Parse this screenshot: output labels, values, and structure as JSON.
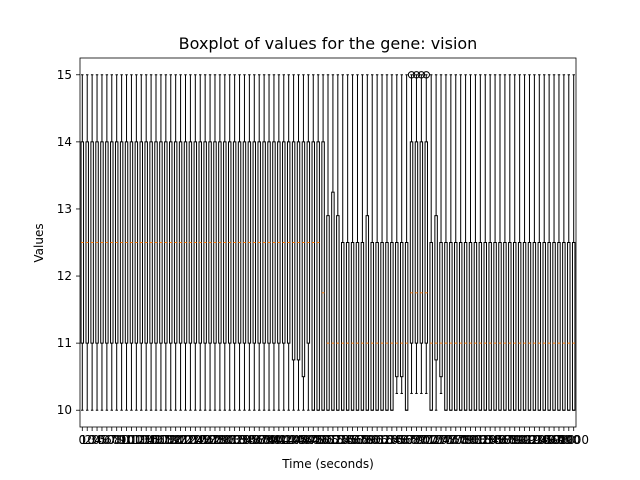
{
  "chart_data": {
    "type": "boxplot",
    "title": "Boxplot of values for the gene: vision",
    "xlabel": "Time (seconds)",
    "ylabel": "Values",
    "ylim": [
      9.75,
      15.25
    ],
    "yticks": [
      10,
      11,
      12,
      13,
      14,
      15
    ],
    "grid": false,
    "legend": "none",
    "colors": {
      "box": "#000000",
      "median": "#ff7f0e"
    },
    "x_range": [
      0,
      1000
    ],
    "x_step": 10,
    "segments": [
      {
        "from": 0,
        "to": 480,
        "whislo": 10,
        "q1": 11,
        "med": 12.5,
        "q3": 14,
        "whishi": 15
      },
      {
        "from": 490,
        "to": 660,
        "whislo": 10,
        "q1": 10,
        "med": 11,
        "q3": 12.5,
        "whishi": 15
      },
      {
        "from": 670,
        "to": 700,
        "whislo": 10.25,
        "q1": 11,
        "med": 11.75,
        "q3": 14,
        "whishi": 15
      },
      {
        "from": 710,
        "to": 1000,
        "whislo": 10,
        "q1": 10,
        "med": 11,
        "q3": 12.5,
        "whishi": 15
      }
    ],
    "overrides": [
      {
        "x": 430,
        "q1": 10.75
      },
      {
        "x": 440,
        "q1": 10.75
      },
      {
        "x": 450,
        "q1": 10.5
      },
      {
        "x": 470,
        "q1": 10
      },
      {
        "x": 480,
        "q1": 10,
        "med": 12.5
      },
      {
        "x": 490,
        "med": 11.75,
        "q3": 14
      },
      {
        "x": 500,
        "q3": 12.9
      },
      {
        "x": 510,
        "q3": 13.25
      },
      {
        "x": 520,
        "q3": 12.9
      },
      {
        "x": 580,
        "q3": 12.9
      },
      {
        "x": 640,
        "whislo": 10.25,
        "q1": 10.5
      },
      {
        "x": 650,
        "whislo": 10.25,
        "q1": 10.5
      },
      {
        "x": 720,
        "q1": 10.75,
        "q3": 12.9
      },
      {
        "x": 730,
        "whislo": 10.25,
        "q1": 10.5
      }
    ],
    "fliers": [
      {
        "x": 670,
        "y": 15
      },
      {
        "x": 680,
        "y": 15
      },
      {
        "x": 690,
        "y": 15
      },
      {
        "x": 700,
        "y": 15
      }
    ]
  }
}
